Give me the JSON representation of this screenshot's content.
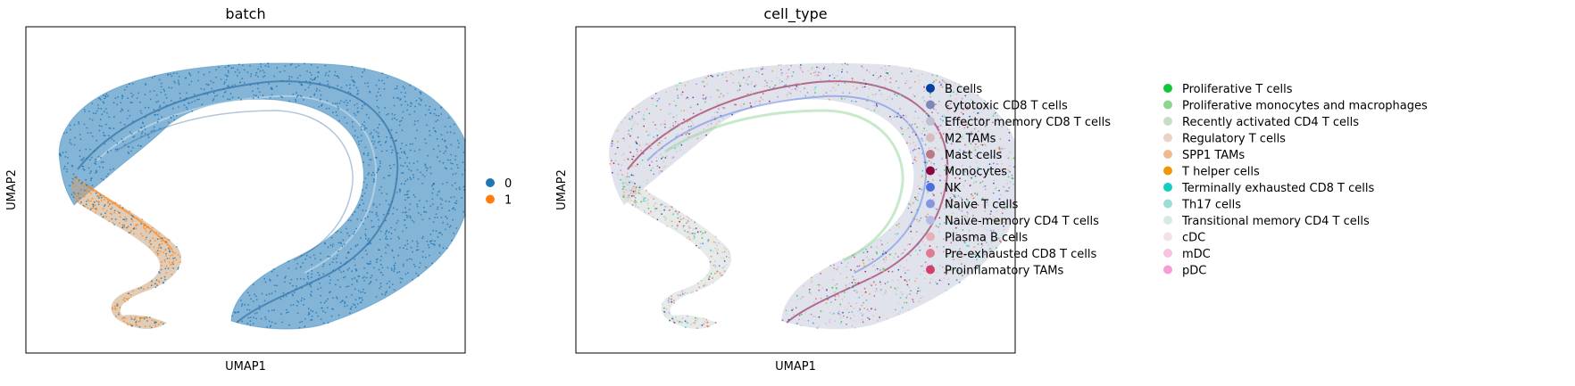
{
  "chart_data": [
    {
      "type": "scatter",
      "title": "batch",
      "xlabel": "UMAP1",
      "ylabel": "UMAP2",
      "grid": false,
      "ticks": false,
      "legend_placement": "right",
      "series": [
        {
          "name": "0",
          "color": "#1f77b4"
        },
        {
          "name": "1",
          "color": "#ff7f0e"
        }
      ]
    },
    {
      "type": "scatter",
      "title": "cell_type",
      "xlabel": "UMAP1",
      "ylabel": "UMAP2",
      "grid": false,
      "ticks": false,
      "legend_placement": "right",
      "legend_columns": 2,
      "series": [
        {
          "name": "B cells",
          "color": "#023fa5"
        },
        {
          "name": "Cytotoxic CD8 T cells",
          "color": "#7d87b9"
        },
        {
          "name": "Effector memory CD8 T cells",
          "color": "#bec1d4"
        },
        {
          "name": "M2 TAMs",
          "color": "#d6bcc0"
        },
        {
          "name": "Mast cells",
          "color": "#bb7784"
        },
        {
          "name": "Monocytes",
          "color": "#8e063b"
        },
        {
          "name": "NK",
          "color": "#4a6fe3"
        },
        {
          "name": "Naive T cells",
          "color": "#8595e1"
        },
        {
          "name": "Naive-memory CD4 T cells",
          "color": "#b5bbe3"
        },
        {
          "name": "Plasma B cells",
          "color": "#e6afb9"
        },
        {
          "name": "Pre-exhausted CD8 T cells",
          "color": "#e07b91"
        },
        {
          "name": "Proinflamatory TAMs",
          "color": "#d33f6a"
        },
        {
          "name": "Proliferative T cells",
          "color": "#11c638"
        },
        {
          "name": "Proliferative monocytes and macrophages",
          "color": "#8dd593"
        },
        {
          "name": "Recently activated CD4 T cells",
          "color": "#c6dec7"
        },
        {
          "name": "Regulatory T cells",
          "color": "#ead3c6"
        },
        {
          "name": "SPP1 TAMs",
          "color": "#f0b98d"
        },
        {
          "name": "T helper cells",
          "color": "#ef9708"
        },
        {
          "name": "Terminally exhausted CD8 T cells",
          "color": "#0fcfc0"
        },
        {
          "name": "Th17 cells",
          "color": "#9cded6"
        },
        {
          "name": "Transitional memory CD4 T cells",
          "color": "#d5eae7"
        },
        {
          "name": "cDC",
          "color": "#f3e1eb"
        },
        {
          "name": "mDC",
          "color": "#f6c4e1"
        },
        {
          "name": "pDC",
          "color": "#f79cd4"
        }
      ]
    }
  ]
}
